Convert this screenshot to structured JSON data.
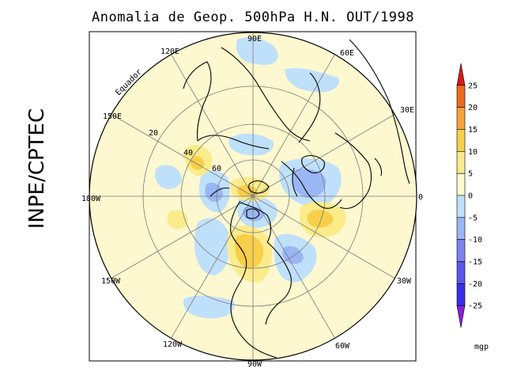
{
  "title": "Anomalia de Geop. 500hPa H.N. OUT/1998",
  "credit": "INPE/CPTEC",
  "longitude_labels": [
    "90E",
    "60E",
    "30E",
    "0",
    "30W",
    "60W",
    "90W",
    "120W",
    "150W",
    "180W",
    "150E",
    "120E"
  ],
  "latitude_labels": [
    "20",
    "40",
    "60"
  ],
  "equator_label": "Equador",
  "colorbar": {
    "units": "mgp",
    "ticks": [
      "25",
      "20",
      "15",
      "10",
      "5",
      "0",
      "-5",
      "-10",
      "-15",
      "-20",
      "-25"
    ],
    "colors": [
      "#d7191c",
      "#ee6a1c",
      "#f8a23a",
      "#f7cf4a",
      "#fbeb8b",
      "#fdf8cf",
      "#bfe0fb",
      "#9ab6f4",
      "#7a83ef",
      "#5a57ec",
      "#3a2eea",
      "#8a1fe0"
    ]
  }
}
